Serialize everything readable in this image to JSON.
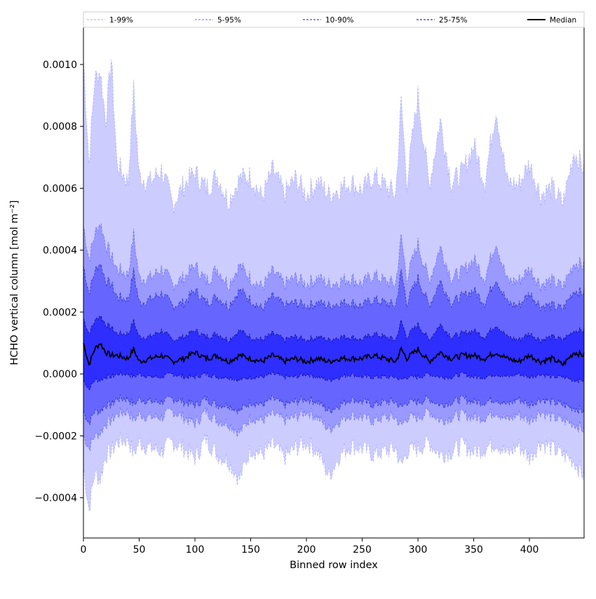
{
  "chart_data": {
    "type": "area",
    "title": "",
    "xlabel": "Binned row index",
    "ylabel": "HCHO vertical column [mol m⁻²]",
    "xlim": [
      0,
      449
    ],
    "ylim": [
      -0.00053,
      0.00112
    ],
    "x_ticks": [
      0,
      50,
      100,
      150,
      200,
      250,
      300,
      350,
      400
    ],
    "y_ticks": [
      -0.0004,
      -0.0002,
      0.0,
      0.0002,
      0.0004,
      0.0006,
      0.0008,
      0.001
    ],
    "y_tick_labels": [
      "−0.0004",
      "−0.0002",
      "0.0000",
      "0.0002",
      "0.0004",
      "0.0006",
      "0.0008",
      "0.0010"
    ],
    "legend_position": "top",
    "legend": [
      "1-99%",
      "5-95%",
      "10-90%",
      "25-75%",
      "Median"
    ],
    "x_sampled": [
      0,
      5,
      10,
      15,
      20,
      25,
      30,
      40,
      45,
      50,
      60,
      70,
      80,
      90,
      100,
      110,
      120,
      130,
      140,
      150,
      160,
      170,
      180,
      190,
      200,
      210,
      220,
      230,
      240,
      250,
      260,
      270,
      280,
      285,
      290,
      300,
      310,
      320,
      330,
      340,
      350,
      360,
      370,
      380,
      390,
      400,
      410,
      420,
      430,
      440,
      449
    ],
    "bands": [
      {
        "name": "1-99%",
        "color": "#ccccff",
        "line_color": "#aaaaff",
        "upper": [
          0.00102,
          0.00068,
          0.00095,
          0.00098,
          0.00082,
          0.00102,
          0.00068,
          0.00062,
          0.00092,
          0.00064,
          0.00062,
          0.00066,
          0.00055,
          0.00061,
          0.00065,
          0.0006,
          0.00064,
          0.00056,
          0.00063,
          0.00064,
          0.00057,
          0.00066,
          0.00058,
          0.00063,
          0.00058,
          0.00062,
          0.00058,
          0.0006,
          0.00062,
          0.00059,
          0.00064,
          0.00061,
          0.00058,
          0.00088,
          0.00062,
          0.0009,
          0.00061,
          0.00082,
          0.00062,
          0.00065,
          0.00074,
          0.00062,
          0.00086,
          0.00062,
          0.00061,
          0.00068,
          0.00058,
          0.0006,
          0.00055,
          0.00072,
          0.00066
        ],
        "lower": [
          -0.0003,
          -0.00044,
          -0.00032,
          -0.00034,
          -0.00026,
          -0.00025,
          -0.00022,
          -0.00021,
          -0.00026,
          -0.00022,
          -0.00024,
          -0.00025,
          -0.00022,
          -0.00024,
          -0.00027,
          -0.00021,
          -0.00026,
          -0.00028,
          -0.00034,
          -0.00024,
          -0.00026,
          -0.00023,
          -0.00027,
          -0.00024,
          -0.00022,
          -0.00025,
          -0.00033,
          -0.00026,
          -0.00023,
          -0.00024,
          -0.00026,
          -0.00025,
          -0.00024,
          -0.0003,
          -0.00025,
          -0.00024,
          -0.00022,
          -0.00026,
          -0.00025,
          -0.00023,
          -0.00025,
          -0.00024,
          -0.00022,
          -0.00026,
          -0.00023,
          -0.00027,
          -0.00022,
          -0.00024,
          -0.00026,
          -0.00028,
          -0.00033
        ]
      },
      {
        "name": "5-95%",
        "color": "#9999ff",
        "line_color": "#6666ff",
        "upper": [
          0.00048,
          0.00037,
          0.00045,
          0.00049,
          0.00042,
          0.00038,
          0.00034,
          0.00032,
          0.00045,
          0.00031,
          0.00031,
          0.00034,
          0.00029,
          0.00031,
          0.00035,
          0.0003,
          0.00034,
          0.00029,
          0.00035,
          0.00031,
          0.00028,
          0.00033,
          0.00029,
          0.00031,
          0.00029,
          0.00031,
          0.00029,
          0.0003,
          0.00031,
          0.00029,
          0.00032,
          0.0003,
          0.00029,
          0.00044,
          0.00031,
          0.00042,
          0.0003,
          0.00041,
          0.00031,
          0.00033,
          0.00037,
          0.00031,
          0.00043,
          0.0003,
          0.0003,
          0.00034,
          0.00029,
          0.0003,
          0.00028,
          0.00036,
          0.00035
        ],
        "lower": [
          -0.0002,
          -0.00024,
          -0.0002,
          -0.00019,
          -0.00016,
          -0.00015,
          -0.00013,
          -0.00012,
          -0.00015,
          -0.00013,
          -0.00014,
          -0.00014,
          -0.00012,
          -0.00014,
          -0.00016,
          -0.00012,
          -0.00015,
          -0.00016,
          -0.00019,
          -0.00014,
          -0.00015,
          -0.00013,
          -0.00015,
          -0.00014,
          -0.00012,
          -0.00014,
          -0.00018,
          -0.00015,
          -0.00013,
          -0.00014,
          -0.00015,
          -0.00014,
          -0.00014,
          -0.00017,
          -0.00014,
          -0.00014,
          -0.00012,
          -0.00015,
          -0.00014,
          -0.00013,
          -0.00014,
          -0.00014,
          -0.00012,
          -0.00015,
          -0.00013,
          -0.00015,
          -0.00012,
          -0.00014,
          -0.00015,
          -0.00016,
          -0.00018
        ]
      },
      {
        "name": "10-90%",
        "color": "#6666ff",
        "line_color": "#2222bb",
        "upper": [
          0.00035,
          0.00026,
          0.00033,
          0.00036,
          0.0003,
          0.00029,
          0.00025,
          0.00024,
          0.00033,
          0.00023,
          0.00024,
          0.00026,
          0.00022,
          0.00023,
          0.00027,
          0.00023,
          0.00025,
          0.00022,
          0.00027,
          0.00024,
          0.00021,
          0.00025,
          0.00022,
          0.00023,
          0.00022,
          0.00023,
          0.00022,
          0.00023,
          0.00023,
          0.00022,
          0.00024,
          0.00023,
          0.00022,
          0.00033,
          0.00023,
          0.00031,
          0.00022,
          0.0003,
          0.00023,
          0.00025,
          0.00027,
          0.00023,
          0.00031,
          0.00023,
          0.00022,
          0.00026,
          0.00022,
          0.00022,
          0.00021,
          0.00027,
          0.00026
        ],
        "lower": [
          -0.00012,
          -0.00016,
          -0.00012,
          -0.00012,
          -0.0001,
          -0.0001,
          -8e-05,
          -8e-05,
          -0.0001,
          -8e-05,
          -9e-05,
          -9e-05,
          -8e-05,
          -9e-05,
          -0.0001,
          -8e-05,
          -0.0001,
          -0.0001,
          -0.00012,
          -9e-05,
          -0.0001,
          -8e-05,
          -0.0001,
          -9e-05,
          -8e-05,
          -9e-05,
          -0.00012,
          -0.0001,
          -8e-05,
          -9e-05,
          -0.0001,
          -9e-05,
          -9e-05,
          -0.00011,
          -9e-05,
          -9e-05,
          -8e-05,
          -0.0001,
          -9e-05,
          -8e-05,
          -9e-05,
          -9e-05,
          -8e-05,
          -0.0001,
          -8e-05,
          -0.0001,
          -8e-05,
          -9e-05,
          -0.0001,
          -0.00011,
          -0.00012
        ]
      },
      {
        "name": "25-75%",
        "color": "#2e2eff",
        "line_color": "#000080",
        "upper": [
          0.00018,
          0.00013,
          0.00017,
          0.00019,
          0.00016,
          0.00015,
          0.00013,
          0.00013,
          0.00017,
          0.00012,
          0.00012,
          0.00014,
          0.00011,
          0.00012,
          0.00014,
          0.00012,
          0.00013,
          0.00011,
          0.00014,
          0.00012,
          0.00011,
          0.00013,
          0.00011,
          0.00012,
          0.00011,
          0.00012,
          0.00011,
          0.00012,
          0.00012,
          0.00011,
          0.00013,
          0.00012,
          0.00011,
          0.00017,
          0.00012,
          0.00016,
          0.00011,
          0.00016,
          0.00012,
          0.00013,
          0.00014,
          0.00012,
          0.00016,
          0.00012,
          0.00011,
          0.00013,
          0.00011,
          0.00012,
          0.00011,
          0.00014,
          0.00014
        ],
        "lower": [
          -2e-05,
          -5e-05,
          -2e-05,
          -2e-05,
          -1e-05,
          -1e-05,
          0.0,
          0.0,
          -1e-05,
          0.0,
          -1e-05,
          -1e-05,
          0.0,
          -1e-05,
          -1e-05,
          0.0,
          -1e-05,
          -1e-05,
          -2e-05,
          -1e-05,
          -1e-05,
          0.0,
          -1e-05,
          -1e-05,
          0.0,
          -1e-05,
          -2e-05,
          -1e-05,
          0.0,
          -1e-05,
          -1e-05,
          -1e-05,
          -1e-05,
          -2e-05,
          -1e-05,
          -1e-05,
          0.0,
          -1e-05,
          -1e-05,
          0.0,
          -1e-05,
          -1e-05,
          0.0,
          -1e-05,
          0.0,
          -1e-05,
          0.0,
          -1e-05,
          -1e-05,
          -2e-05,
          -2e-05
        ]
      }
    ],
    "median": {
      "name": "Median",
      "color": "#000000",
      "values": [
        0.0001,
        3e-05,
        8e-05,
        0.0001,
        7e-05,
        6e-05,
        6e-05,
        5e-05,
        8e-05,
        4e-05,
        5e-05,
        6e-05,
        4e-05,
        5e-05,
        7e-05,
        5e-05,
        6e-05,
        4e-05,
        6e-05,
        5e-05,
        4e-05,
        6e-05,
        4e-05,
        5e-05,
        4e-05,
        5e-05,
        4e-05,
        5e-05,
        5e-05,
        5e-05,
        6e-05,
        5e-05,
        4e-05,
        8e-05,
        5e-05,
        8e-05,
        4e-05,
        7e-05,
        5e-05,
        6e-05,
        6e-05,
        5e-05,
        7e-05,
        5e-05,
        4e-05,
        6e-05,
        4e-05,
        5e-05,
        3e-05,
        7e-05,
        6e-05
      ]
    }
  }
}
